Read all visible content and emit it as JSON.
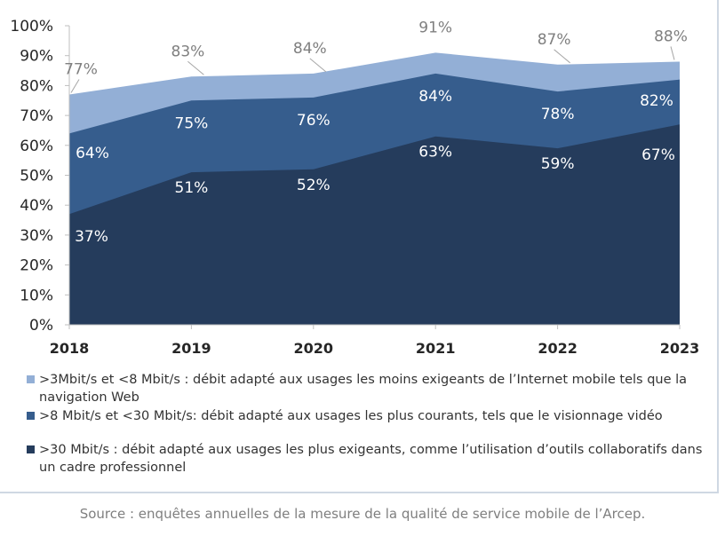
{
  "chart_data": {
    "type": "area",
    "stacked": true,
    "categories": [
      "2018",
      "2019",
      "2020",
      "2021",
      "2022",
      "2023"
    ],
    "ylim": [
      0,
      100
    ],
    "yticks": [
      "0%",
      "10%",
      "20%",
      "30%",
      "40%",
      "50%",
      "60%",
      "70%",
      "80%",
      "90%",
      "100%"
    ],
    "grid": false,
    "legend_position": "bottom",
    "series": [
      {
        "name": ">30 Mbit/s : débit adapté aux usages les plus exigeants, comme l’utilisation d’outils collaboratifs dans un cadre professionnel",
        "values": [
          37,
          51,
          52,
          63,
          59,
          67
        ],
        "labels": [
          "37%",
          "51%",
          "52%",
          "63%",
          "59%",
          "67%"
        ],
        "color": "#253c5c"
      },
      {
        "name": ">8 Mbit/s et <30 Mbit/s: débit adapté aux usages les plus courants, tels que le visionnage vidéo",
        "values": [
          64,
          75,
          76,
          84,
          78,
          82
        ],
        "labels": [
          "64%",
          "75%",
          "76%",
          "84%",
          "78%",
          "82%"
        ],
        "color": "#365d8d"
      },
      {
        "name": ">3Mbit/s et <8 Mbit/s : débit adapté aux usages les moins exigeants de l’Internet mobile tels que la navigation Web",
        "values": [
          77,
          83,
          84,
          91,
          87,
          88
        ],
        "labels": [
          "77%",
          "83%",
          "84%",
          "91%",
          "87%",
          "88%"
        ],
        "color": "#93afd6"
      }
    ]
  },
  "source_note": "Source : enquêtes annuelles de la mesure de la qualité de service mobile de l’Arcep."
}
